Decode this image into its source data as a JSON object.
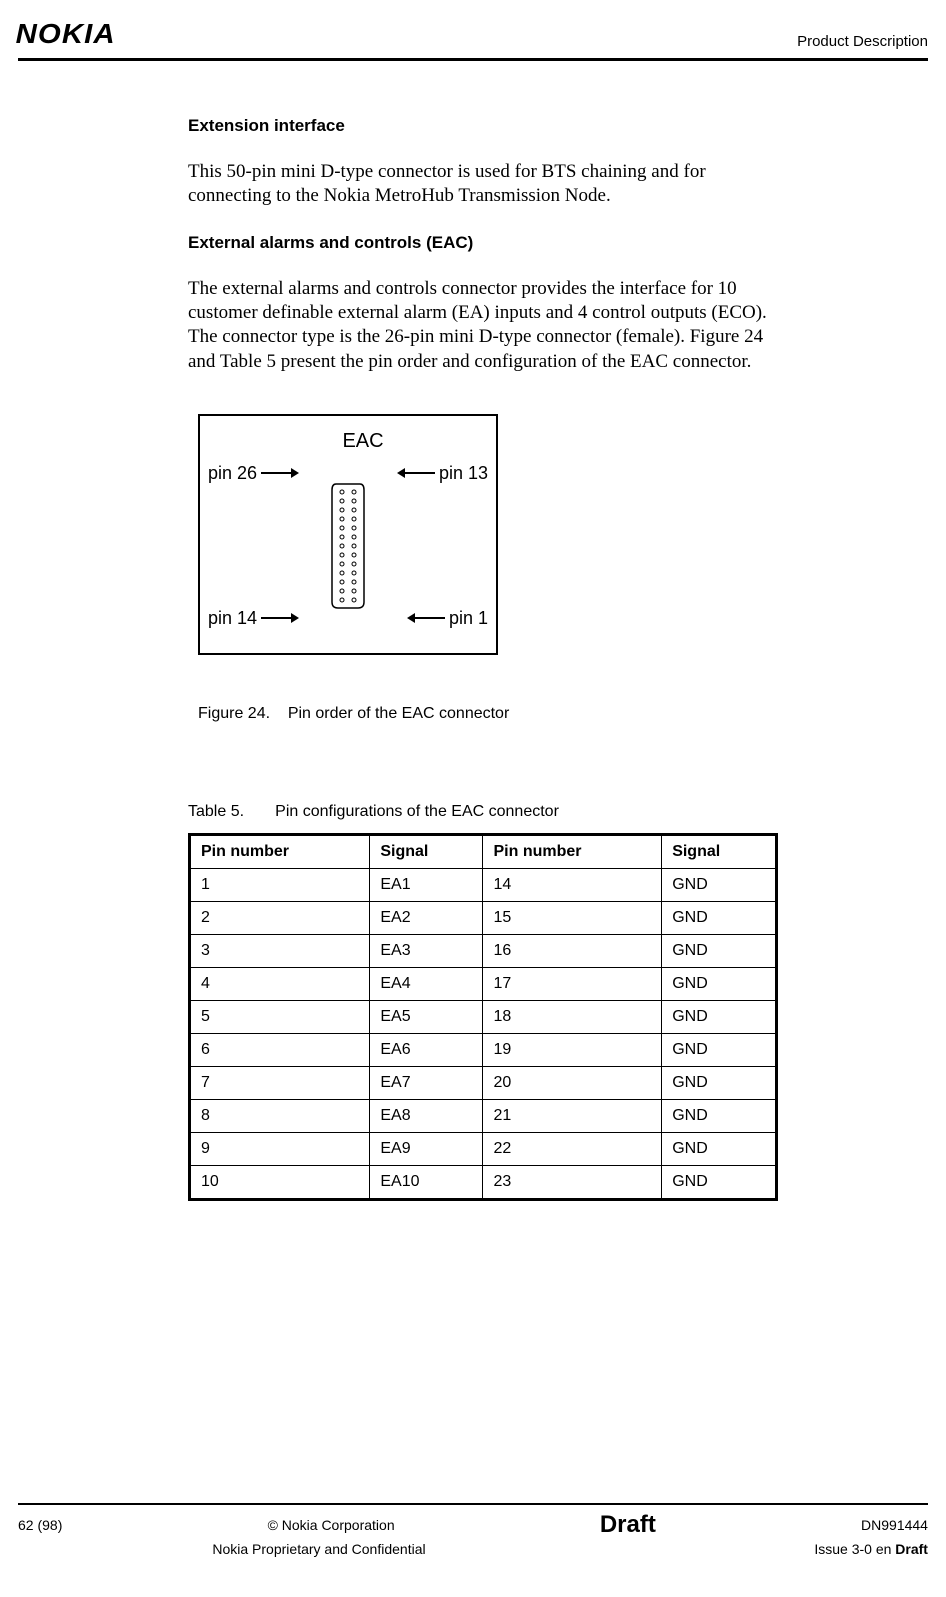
{
  "header": {
    "brand": "NOKIA",
    "section": "Product Description"
  },
  "sections": {
    "ext_if_title": "Extension interface",
    "ext_if_body": "This 50-pin mini D-type connector is used for BTS chaining and for connecting to the Nokia MetroHub Transmission Node.",
    "eac_title": "External alarms and controls (EAC)",
    "eac_body": "The external alarms and controls connector provides the interface for 10 customer definable external alarm (EA) inputs and 4 control outputs (ECO). The connector type is the 26-pin mini D-type connector (female). Figure 24 and Table 5 present the pin order and configuration of the EAC connector."
  },
  "figure": {
    "label": "EAC",
    "pin26": "pin 26",
    "pin13": "pin 13",
    "pin14": "pin 14",
    "pin1": "pin 1",
    "caption_num": "Figure 24.",
    "caption_text": "Pin order of the EAC connector"
  },
  "table": {
    "caption_num": "Table 5.",
    "caption_text": "Pin configurations of the EAC connector",
    "columns": [
      "Pin number",
      "Signal",
      "Pin number",
      "Signal"
    ],
    "rows": [
      [
        "1",
        "EA1",
        "14",
        "GND"
      ],
      [
        "2",
        "EA2",
        "15",
        "GND"
      ],
      [
        "3",
        "EA3",
        "16",
        "GND"
      ],
      [
        "4",
        "EA4",
        "17",
        "GND"
      ],
      [
        "5",
        "EA5",
        "18",
        "GND"
      ],
      [
        "6",
        "EA6",
        "19",
        "GND"
      ],
      [
        "7",
        "EA7",
        "20",
        "GND"
      ],
      [
        "8",
        "EA8",
        "21",
        "GND"
      ],
      [
        "9",
        "EA9",
        "22",
        "GND"
      ],
      [
        "10",
        "EA10",
        "23",
        "GND"
      ]
    ]
  },
  "footer": {
    "page": "62 (98)",
    "copyright": "© Nokia Corporation",
    "status": "Draft",
    "docnum": "DN991444",
    "confidential": "Nokia Proprietary and Confidential",
    "issue_prefix": "Issue 3-0 en ",
    "issue_bold": "Draft"
  }
}
